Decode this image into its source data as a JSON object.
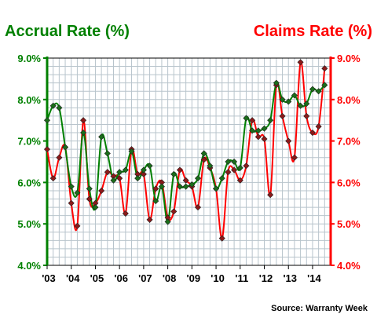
{
  "chart_data": {
    "type": "line",
    "left_axis_title": "Accrual Rate (%)",
    "right_axis_title": "Claims Rate (%)",
    "source": "Source: Warranty Week",
    "ylim": [
      4.0,
      9.0
    ],
    "yticks": [
      "4.0%",
      "5.0%",
      "6.0%",
      "7.0%",
      "8.0%",
      "9.0%"
    ],
    "ytick_values": [
      4.0,
      5.0,
      6.0,
      7.0,
      8.0,
      9.0
    ],
    "xlim": [
      2003.0,
      2014.75
    ],
    "xticks": [
      "'03",
      "'04",
      "'05",
      "'06",
      "'07",
      "'08",
      "'09",
      "'10",
      "'11",
      "'12",
      "'13",
      "'14"
    ],
    "xtick_values": [
      2003,
      2004,
      2005,
      2006,
      2007,
      2008,
      2009,
      2010,
      2011,
      2012,
      2013,
      2014
    ],
    "grid": true,
    "colors": {
      "accrual": "#008000",
      "accrual_marker": "#1a6e1a",
      "claims": "#ff0000",
      "claims_marker": "#8b1a1a",
      "left_axis": "#008000",
      "right_axis": "#ff0000",
      "grid": "#b8c4cc",
      "frame": "#000000"
    },
    "series": [
      {
        "name": "Accrual Rate (%)",
        "axis": "left",
        "x": [
          2003.0,
          2003.25,
          2003.5,
          2003.75,
          2004.0,
          2004.25,
          2004.5,
          2004.75,
          2005.0,
          2005.25,
          2005.5,
          2005.75,
          2006.0,
          2006.25,
          2006.5,
          2006.75,
          2007.0,
          2007.25,
          2007.5,
          2007.75,
          2008.0,
          2008.25,
          2008.5,
          2008.75,
          2009.0,
          2009.25,
          2009.5,
          2009.75,
          2010.0,
          2010.25,
          2010.5,
          2010.75,
          2011.0,
          2011.25,
          2011.5,
          2011.75,
          2012.0,
          2012.25,
          2012.5,
          2012.75,
          2013.0,
          2013.25,
          2013.5,
          2013.75,
          2014.0,
          2014.25,
          2014.5
        ],
        "values": [
          7.5,
          7.85,
          7.8,
          6.85,
          5.9,
          5.75,
          7.2,
          5.85,
          5.4,
          7.1,
          6.7,
          6.05,
          6.25,
          6.3,
          6.75,
          6.1,
          6.3,
          6.4,
          5.55,
          5.9,
          5.05,
          6.2,
          5.9,
          5.9,
          5.95,
          6.1,
          6.7,
          6.4,
          5.85,
          6.1,
          6.5,
          6.5,
          6.35,
          7.55,
          7.25,
          7.25,
          7.3,
          7.5,
          8.4,
          8.0,
          7.95,
          8.1,
          7.85,
          7.9,
          8.25,
          8.2,
          8.35
        ]
      },
      {
        "name": "Claims Rate (%)",
        "axis": "right",
        "x": [
          2003.0,
          2003.25,
          2003.5,
          2003.75,
          2004.0,
          2004.25,
          2004.5,
          2004.75,
          2005.0,
          2005.25,
          2005.5,
          2005.75,
          2006.0,
          2006.25,
          2006.5,
          2006.75,
          2007.0,
          2007.25,
          2007.5,
          2007.75,
          2008.0,
          2008.25,
          2008.5,
          2008.75,
          2009.0,
          2009.25,
          2009.5,
          2009.75,
          2010.0,
          2010.25,
          2010.5,
          2010.75,
          2011.0,
          2011.25,
          2011.5,
          2011.75,
          2012.0,
          2012.25,
          2012.5,
          2012.75,
          2013.0,
          2013.25,
          2013.5,
          2013.75,
          2014.0,
          2014.25,
          2014.5
        ],
        "values": [
          6.8,
          6.1,
          6.6,
          6.85,
          5.5,
          4.95,
          7.5,
          5.6,
          5.5,
          5.8,
          6.25,
          6.15,
          6.1,
          5.25,
          6.8,
          6.2,
          6.2,
          5.1,
          5.85,
          6.0,
          5.15,
          5.3,
          6.3,
          6.05,
          5.9,
          5.4,
          6.55,
          6.35,
          5.85,
          4.65,
          6.25,
          6.3,
          6.05,
          6.4,
          7.5,
          7.1,
          7.05,
          5.7,
          8.35,
          7.6,
          7.0,
          6.6,
          8.9,
          7.6,
          7.2,
          7.35,
          8.75
        ]
      }
    ]
  }
}
